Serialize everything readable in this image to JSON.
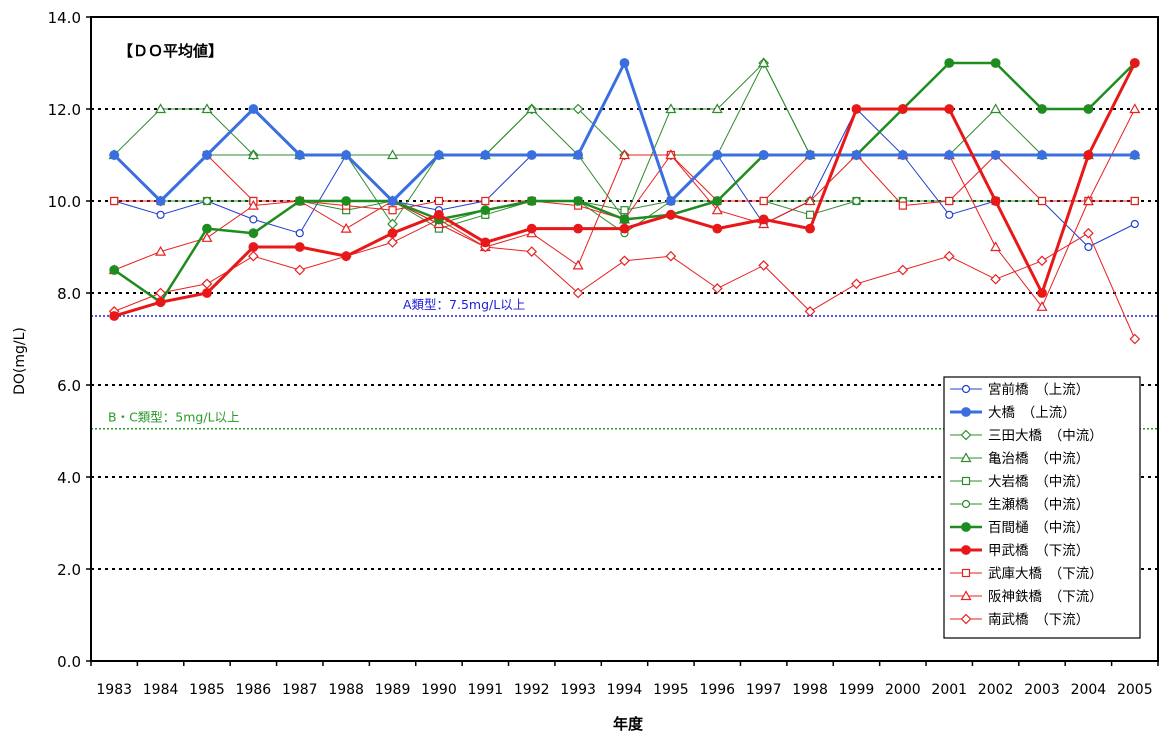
{
  "chart_data": {
    "type": "line",
    "title": "【ＤＯ平均値】",
    "xlabel": "年度",
    "ylabel": "DO(mg/L)",
    "ylim": [
      0,
      14
    ],
    "yticks": [
      "0.0",
      "2.0",
      "4.0",
      "6.0",
      "8.0",
      "10.0",
      "12.0",
      "14.0"
    ],
    "categories": [
      "1983",
      "1984",
      "1985",
      "1986",
      "1987",
      "1988",
      "1989",
      "1990",
      "1991",
      "1992",
      "1993",
      "1994",
      "1995",
      "1996",
      "1997",
      "1998",
      "1999",
      "2000",
      "2001",
      "2002",
      "2003",
      "2004",
      "2005"
    ],
    "grid": "horizontal dotted",
    "legend_position": "bottom-right",
    "reference_lines": [
      {
        "label": "A類型：7.5mg/L以上",
        "value": 7.5,
        "color": "#2020e0"
      },
      {
        "label": "B・C類型：5mg/L以上",
        "value": 5.05,
        "color": "#2a9a2a"
      }
    ],
    "series": [
      {
        "name": "宮前橋　（上流）",
        "color": "#1f3fd0",
        "marker": "circle-open",
        "width": 1,
        "values": [
          10,
          9.7,
          10,
          9.6,
          9.3,
          11,
          10,
          9.8,
          10,
          11,
          11,
          13,
          10,
          11,
          9.5,
          10,
          12,
          11,
          9.7,
          10,
          10,
          9,
          9.5
        ]
      },
      {
        "name": "大橋　（上流）",
        "color": "#3b6fe0",
        "marker": "circle-filled",
        "width": 3,
        "values": [
          11,
          10,
          11,
          12,
          11,
          11,
          10,
          11,
          11,
          11,
          11,
          13,
          10,
          11,
          11,
          11,
          11,
          11,
          11,
          11,
          11,
          11,
          11
        ]
      },
      {
        "name": "三田大橋　（中流）",
        "color": "#2e8b2e",
        "marker": "diamond-open",
        "width": 1,
        "values": [
          11,
          10,
          11,
          11,
          11,
          11,
          9.5,
          11,
          11,
          12,
          12,
          11,
          11,
          11,
          13,
          11,
          11,
          11,
          11,
          11,
          11,
          11,
          11
        ]
      },
      {
        "name": "亀治橋　（中流）",
        "color": "#2e8b2e",
        "marker": "triangle-open",
        "width": 1,
        "values": [
          11,
          12,
          12,
          11,
          11,
          11,
          11,
          11,
          11,
          12,
          11,
          9.6,
          12,
          12,
          13,
          11,
          11,
          11,
          11,
          12,
          11,
          11,
          11
        ]
      },
      {
        "name": "大岩橋　（中流）",
        "color": "#2e8b2e",
        "marker": "square-open",
        "width": 1,
        "values": [
          10,
          10,
          10,
          10,
          10,
          9.8,
          10,
          9.4,
          9.7,
          10,
          10,
          9.8,
          10,
          10,
          10,
          9.7,
          10,
          10,
          10,
          10,
          10,
          10,
          10
        ]
      },
      {
        "name": "生瀬橋　（中流）",
        "color": "#2e8b2e",
        "marker": "circle-open",
        "width": 1,
        "values": [
          10,
          10,
          10,
          10,
          10,
          10,
          10,
          9.5,
          9.8,
          10,
          10,
          9.3,
          10,
          10,
          10,
          10,
          10,
          10,
          10,
          10,
          10,
          10,
          10
        ]
      },
      {
        "name": "百間樋　（中流）",
        "color": "#1e8c1e",
        "marker": "circle-filled",
        "width": 2.5,
        "values": [
          8.5,
          7.8,
          9.4,
          9.3,
          10,
          10,
          10,
          9.6,
          9.8,
          10,
          10,
          9.6,
          9.7,
          10,
          11,
          11,
          11,
          12,
          13,
          13,
          12,
          12,
          13
        ]
      },
      {
        "name": "甲武橋　（下流）",
        "color": "#e81818",
        "marker": "circle-filled",
        "width": 3,
        "values": [
          7.5,
          7.8,
          8,
          9,
          9,
          8.8,
          9.3,
          9.7,
          9.1,
          9.4,
          9.4,
          9.4,
          9.7,
          9.4,
          9.6,
          9.4,
          12,
          12,
          12,
          10,
          8,
          11,
          13
        ]
      },
      {
        "name": "武庫大橋　（下流）",
        "color": "#e82020",
        "marker": "square-open",
        "width": 1,
        "values": [
          10,
          10,
          11,
          10,
          10,
          9.9,
          9.8,
          10,
          10,
          10,
          9.9,
          9.6,
          11,
          10,
          10,
          11,
          11,
          9.9,
          10,
          11,
          10,
          10,
          10
        ]
      },
      {
        "name": "阪神鉄橋　（下流）",
        "color": "#e82020",
        "marker": "triangle-open",
        "width": 1,
        "values": [
          8.5,
          8.9,
          9.2,
          9.9,
          10,
          9.4,
          10,
          9.5,
          9,
          9.3,
          8.6,
          11,
          11,
          9.8,
          9.5,
          10,
          11,
          11,
          11,
          9,
          7.7,
          10,
          12
        ]
      },
      {
        "name": "南武橋　（下流）",
        "color": "#e82020",
        "marker": "diamond-open",
        "width": 1,
        "values": [
          7.6,
          8,
          8.2,
          8.8,
          8.5,
          8.8,
          9.1,
          9.6,
          9,
          8.9,
          8,
          8.7,
          8.8,
          8.1,
          8.6,
          7.6,
          8.2,
          8.5,
          8.8,
          8.3,
          8.7,
          9.3,
          7
        ]
      }
    ]
  }
}
